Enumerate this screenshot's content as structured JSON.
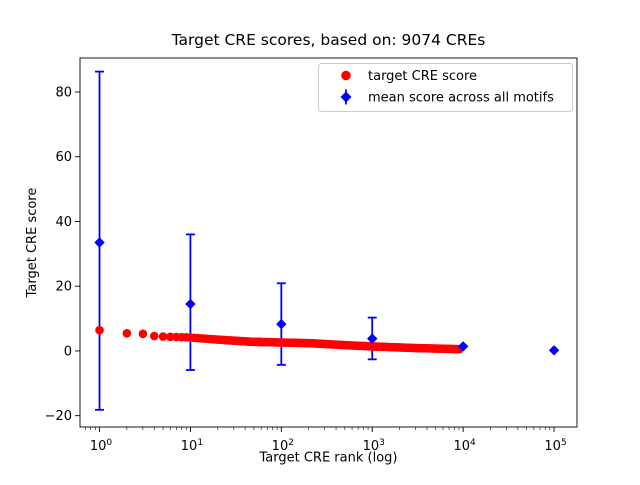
{
  "figure": {
    "background": "#ffffff"
  },
  "chart_data": {
    "type": "scatter",
    "title": "Target CRE scores, based on: 9074 CREs",
    "xlabel": "Target CRE rank (log)",
    "ylabel": "Target CRE score",
    "x_scale": "log",
    "xlim": [
      0.61,
      178900
    ],
    "ylim": [
      -23.5,
      90.5
    ],
    "x_tick_exponents": [
      0,
      1,
      2,
      3,
      4,
      5
    ],
    "y_ticks": [
      -20,
      0,
      20,
      40,
      60,
      80
    ],
    "grid": false,
    "legend_position": "upper right",
    "axis_color": "#000000",
    "legend_border_color": "#cccccc",
    "series": [
      {
        "name": "target CRE score",
        "marker": "circle",
        "color": "#ff0000",
        "n_points": 9074,
        "rank_range": [
          1,
          9074
        ],
        "anchor_points": [
          [
            1,
            6.4
          ],
          [
            2,
            5.45
          ],
          [
            3,
            5.3
          ],
          [
            4,
            4.6
          ],
          [
            5,
            4.45
          ],
          [
            7,
            4.3
          ],
          [
            10,
            4.15
          ],
          [
            20,
            3.5
          ],
          [
            46,
            2.85
          ],
          [
            100,
            2.6
          ],
          [
            208,
            2.4
          ],
          [
            500,
            1.8
          ],
          [
            1000,
            1.4
          ],
          [
            3000,
            0.9
          ],
          [
            9074,
            0.55
          ]
        ]
      },
      {
        "name": "mean score across all motifs",
        "marker": "diamond",
        "color": "#0000ff",
        "points": [
          {
            "x": 1,
            "y": 33.5,
            "err_minus": 51.7,
            "err_plus": 52.8
          },
          {
            "x": 10,
            "y": 14.5,
            "err_minus": 20.4,
            "err_plus": 21.5
          },
          {
            "x": 100,
            "y": 8.3,
            "err_minus": 12.6,
            "err_plus": 12.6
          },
          {
            "x": 1000,
            "y": 3.8,
            "err_minus": 6.4,
            "err_plus": 6.5
          },
          {
            "x": 10000,
            "y": 1.4,
            "err_minus": 0,
            "err_plus": 0
          },
          {
            "x": 100000,
            "y": 0.2,
            "err_minus": 0,
            "err_plus": 0
          }
        ]
      }
    ]
  }
}
